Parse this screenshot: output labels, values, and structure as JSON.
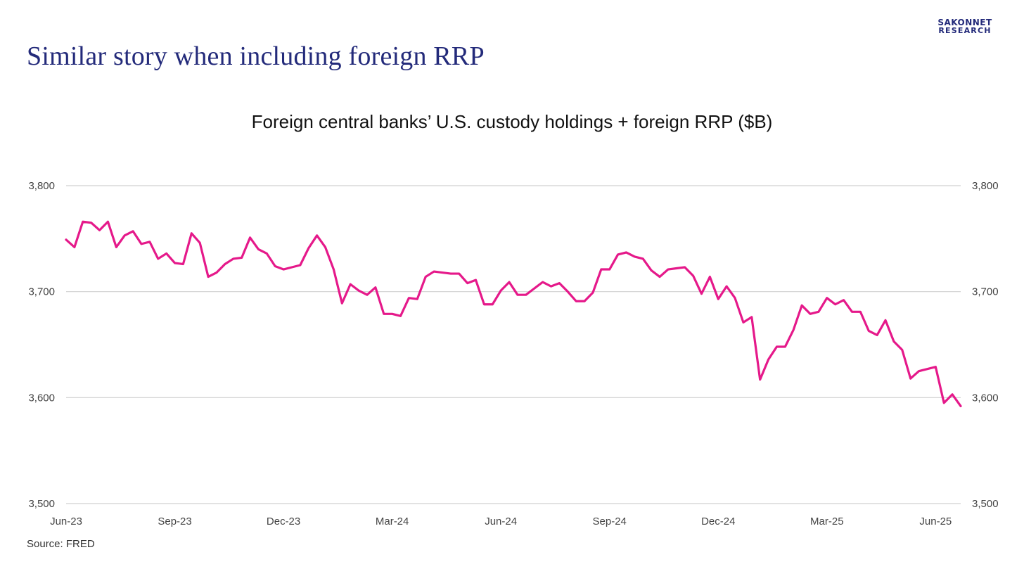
{
  "slide": {
    "title": "Similar story when including foreign RRP",
    "source": "Source: FRED"
  },
  "logo": {
    "line1": "SAKONNET",
    "line2": "RESEARCH",
    "color": "#232a7a"
  },
  "chart_data": {
    "type": "line",
    "title": "Foreign central banks’ U.S. custody holdings + foreign RRP ($B)",
    "xlabel": "",
    "ylabel": "",
    "ylim": [
      3500,
      3800
    ],
    "y_ticks": [
      3800,
      3700,
      3600,
      3500
    ],
    "y_tick_labels": [
      "3,800",
      "3,700",
      "3,600",
      "3,500"
    ],
    "secondary_y_axis": true,
    "grid": "horizontal",
    "x_tick_labels": [
      "Jun-23",
      "Sep-23",
      "Dec-23",
      "Mar-24",
      "Jun-24",
      "Sep-24",
      "Dec-24",
      "Mar-25",
      "Jun-25"
    ],
    "x_tick_indices": [
      0,
      13,
      26,
      39,
      52,
      65,
      78,
      91,
      104
    ],
    "line_color": "#e5198a",
    "series": [
      {
        "name": "",
        "values": [
          3749,
          3742,
          3766,
          3765,
          3758,
          3766,
          3742,
          3753,
          3757,
          3745,
          3747,
          3731,
          3736,
          3727,
          3726,
          3755,
          3746,
          3714,
          3718,
          3726,
          3731,
          3732,
          3751,
          3740,
          3736,
          3724,
          3721,
          3723,
          3725,
          3741,
          3753,
          3742,
          3721,
          3689,
          3707,
          3701,
          3697,
          3704,
          3679,
          3679,
          3677,
          3694,
          3693,
          3714,
          3719,
          3718,
          3717,
          3717,
          3708,
          3711,
          3688,
          3688,
          3701,
          3709,
          3697,
          3697,
          3703,
          3709,
          3705,
          3708,
          3700,
          3691,
          3691,
          3699,
          3721,
          3721,
          3735,
          3737,
          3733,
          3731,
          3720,
          3714,
          3721,
          3722,
          3723,
          3715,
          3698,
          3714,
          3693,
          3705,
          3694,
          3671,
          3676,
          3617,
          3636,
          3648,
          3648,
          3664,
          3687,
          3679,
          3681,
          3694,
          3688,
          3692,
          3681,
          3681,
          3663,
          3659,
          3673,
          3653,
          3645,
          3618,
          3625,
          3627,
          3629,
          3595,
          3603,
          3592
        ]
      }
    ]
  }
}
